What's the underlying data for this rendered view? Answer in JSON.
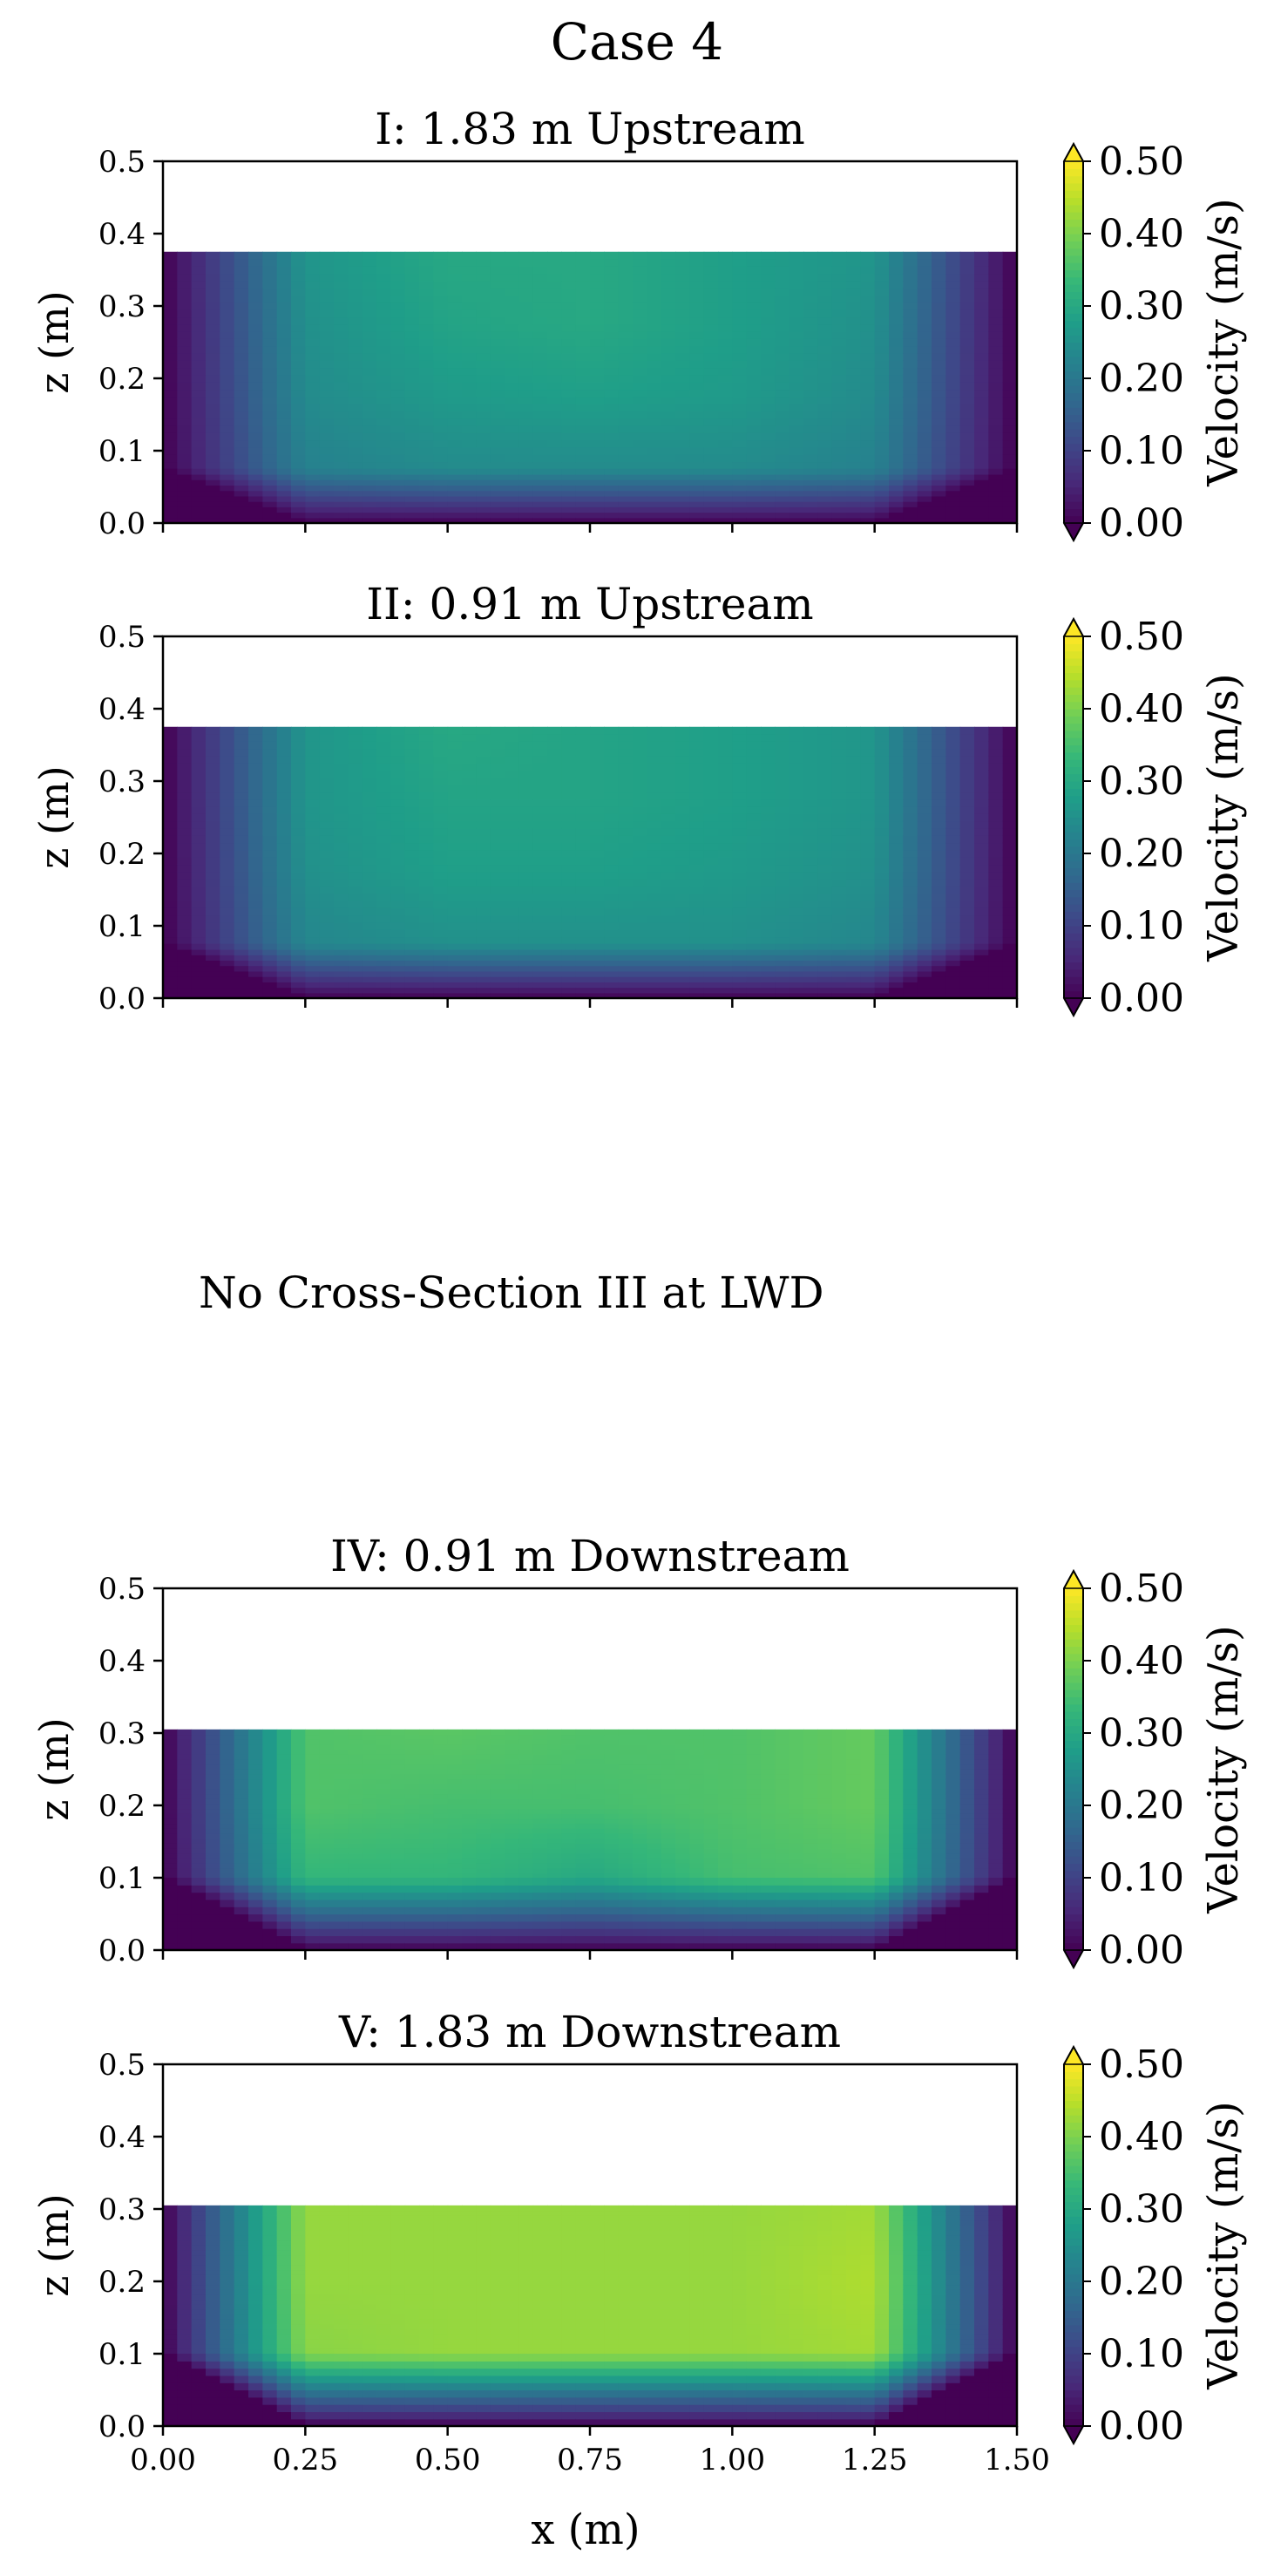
{
  "figure": {
    "title": "Case 4",
    "colorbar_label": "Velocity (m/s)",
    "colorbar_ticks": [
      "0.00",
      "0.10",
      "0.20",
      "0.30",
      "0.40",
      "0.50"
    ],
    "xlabel": "x (m)",
    "ylabel": "z (m)",
    "missing_note": "No Cross-Section III at LWD"
  },
  "colors": {
    "viridis_stops": [
      "#440154",
      "#482878",
      "#3e4989",
      "#31688e",
      "#26828e",
      "#1f9e89",
      "#35b779",
      "#6ece58",
      "#b5de2b",
      "#fde725"
    ]
  },
  "chart_data": [
    {
      "type": "heatmap",
      "title": "I: 1.83 m Upstream",
      "xlim": [
        0,
        1.5
      ],
      "ylim": [
        0,
        0.5
      ],
      "xticks": [
        "0.00",
        "0.25",
        "0.50",
        "0.75",
        "1.00",
        "1.25",
        "1.50"
      ],
      "yticks": [
        "0.0",
        "0.1",
        "0.2",
        "0.3",
        "0.4",
        "0.5"
      ],
      "show_xticklabels": false,
      "water_depth": 0.375,
      "bed_wedge": {
        "side_width": 0.25,
        "side_height": 0.075
      },
      "x_nodes": [
        0.0,
        0.25,
        0.5,
        0.75,
        1.0,
        1.25,
        1.5
      ],
      "z_nodes": [
        0.075,
        0.175,
        0.275,
        0.375
      ],
      "values": [
        [
          0.0,
          0.22,
          0.24,
          0.24,
          0.24,
          0.22,
          0.0
        ],
        [
          0.0,
          0.24,
          0.27,
          0.28,
          0.27,
          0.24,
          0.0
        ],
        [
          0.0,
          0.25,
          0.29,
          0.3,
          0.28,
          0.25,
          0.0
        ],
        [
          0.0,
          0.26,
          0.3,
          0.3,
          0.28,
          0.26,
          0.0
        ]
      ],
      "colorbar": {
        "vmin": 0.0,
        "vmax": 0.5,
        "extend": "both"
      }
    },
    {
      "type": "heatmap",
      "title": "II: 0.91 m Upstream",
      "xlim": [
        0,
        1.5
      ],
      "ylim": [
        0,
        0.5
      ],
      "xticks": [
        "0.00",
        "0.25",
        "0.50",
        "0.75",
        "1.00",
        "1.25",
        "1.50"
      ],
      "yticks": [
        "0.0",
        "0.1",
        "0.2",
        "0.3",
        "0.4",
        "0.5"
      ],
      "show_xticklabels": false,
      "water_depth": 0.375,
      "bed_wedge": {
        "side_width": 0.25,
        "side_height": 0.075
      },
      "x_nodes": [
        0.0,
        0.25,
        0.5,
        0.75,
        1.0,
        1.25,
        1.5
      ],
      "z_nodes": [
        0.075,
        0.175,
        0.275,
        0.375
      ],
      "values": [
        [
          0.0,
          0.23,
          0.25,
          0.25,
          0.25,
          0.23,
          0.0
        ],
        [
          0.0,
          0.25,
          0.28,
          0.28,
          0.27,
          0.25,
          0.0
        ],
        [
          0.0,
          0.26,
          0.29,
          0.29,
          0.28,
          0.26,
          0.0
        ],
        [
          0.0,
          0.26,
          0.3,
          0.29,
          0.28,
          0.26,
          0.0
        ]
      ],
      "colorbar": {
        "vmin": 0.0,
        "vmax": 0.5,
        "extend": "both"
      }
    },
    {
      "type": "heatmap",
      "title": "IV: 0.91 m Downstream",
      "xlim": [
        0,
        1.5
      ],
      "ylim": [
        0,
        0.5
      ],
      "xticks": [
        "0.00",
        "0.25",
        "0.50",
        "0.75",
        "1.00",
        "1.25",
        "1.50"
      ],
      "yticks": [
        "0.0",
        "0.1",
        "0.2",
        "0.3",
        "0.4",
        "0.5"
      ],
      "show_xticklabels": false,
      "water_depth": 0.305,
      "bed_wedge": {
        "side_width": 0.25,
        "side_height": 0.1
      },
      "x_nodes": [
        0.0,
        0.25,
        0.5,
        0.75,
        1.0,
        1.25,
        1.5
      ],
      "z_nodes": [
        0.1,
        0.2,
        0.305
      ],
      "values": [
        [
          0.0,
          0.33,
          0.33,
          0.3,
          0.35,
          0.36,
          0.0
        ],
        [
          0.0,
          0.36,
          0.35,
          0.35,
          0.36,
          0.38,
          0.0
        ],
        [
          0.0,
          0.36,
          0.37,
          0.36,
          0.36,
          0.38,
          0.0
        ]
      ],
      "colorbar": {
        "vmin": 0.0,
        "vmax": 0.5,
        "extend": "both"
      }
    },
    {
      "type": "heatmap",
      "title": "V: 1.83 m Downstream",
      "xlim": [
        0,
        1.5
      ],
      "ylim": [
        0,
        0.5
      ],
      "xticks": [
        "0.00",
        "0.25",
        "0.50",
        "0.75",
        "1.00",
        "1.25",
        "1.50"
      ],
      "yticks": [
        "0.0",
        "0.1",
        "0.2",
        "0.3",
        "0.4",
        "0.5"
      ],
      "show_xticklabels": true,
      "water_depth": 0.305,
      "bed_wedge": {
        "side_width": 0.25,
        "side_height": 0.1
      },
      "x_nodes": [
        0.0,
        0.25,
        0.5,
        0.75,
        1.0,
        1.25,
        1.5
      ],
      "z_nodes": [
        0.1,
        0.2,
        0.305
      ],
      "values": [
        [
          0.0,
          0.41,
          0.42,
          0.42,
          0.42,
          0.43,
          0.0
        ],
        [
          0.0,
          0.42,
          0.42,
          0.42,
          0.42,
          0.44,
          0.0
        ],
        [
          0.0,
          0.42,
          0.42,
          0.42,
          0.42,
          0.43,
          0.0
        ]
      ],
      "colorbar": {
        "vmin": 0.0,
        "vmax": 0.5,
        "extend": "both"
      }
    }
  ]
}
